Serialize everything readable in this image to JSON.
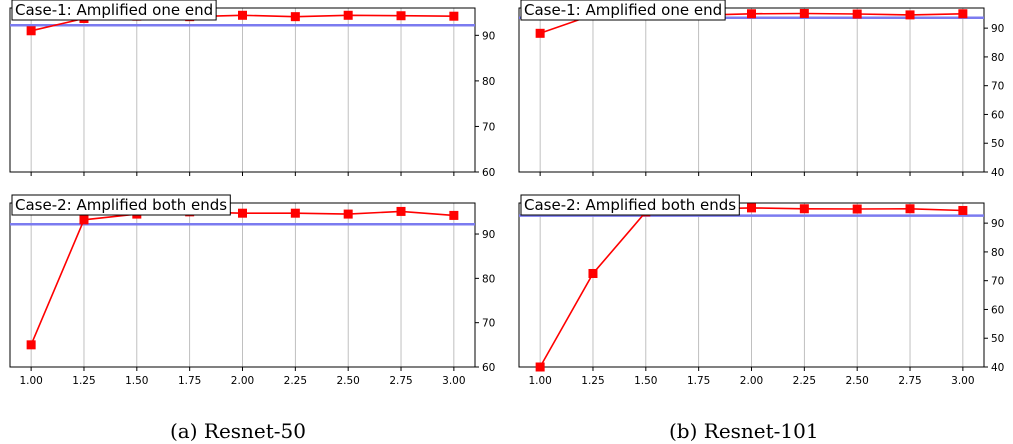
{
  "figure": {
    "captions": [
      "(a) Resnet-50",
      "(b) Resnet-101"
    ]
  },
  "style": {
    "series_color": "#ff0000",
    "baseline_color": "#7b7bf0",
    "grid_color": "#b0b0b0"
  },
  "chart_data": [
    {
      "type": "line",
      "title": "Case-1: Amplified one end",
      "x": [
        1.0,
        1.25,
        1.5,
        1.75,
        2.0,
        2.25,
        2.5,
        2.75,
        3.0
      ],
      "series": [
        {
          "values": [
            91.0,
            93.7,
            94.2,
            94.1,
            94.4,
            94.1,
            94.4,
            94.3,
            94.2
          ]
        }
      ],
      "baseline": 92.2,
      "xlim": [
        0.9,
        3.1
      ],
      "ylim": [
        60,
        96
      ],
      "yticks": [
        60,
        70,
        80,
        90
      ],
      "xticks": [
        1.0,
        1.25,
        1.5,
        1.75,
        2.0,
        2.25,
        2.5,
        2.75,
        3.0
      ],
      "show_xticklabels": false,
      "grid": "x",
      "yaxis_side": "right"
    },
    {
      "type": "line",
      "title": "Case-2: Amplified both ends",
      "x": [
        1.0,
        1.25,
        1.5,
        1.75,
        2.0,
        2.25,
        2.5,
        2.75,
        3.0
      ],
      "series": [
        {
          "values": [
            65.0,
            93.2,
            94.5,
            95.0,
            94.7,
            94.7,
            94.5,
            95.1,
            94.2
          ]
        }
      ],
      "baseline": 92.2,
      "xlim": [
        0.9,
        3.1
      ],
      "ylim": [
        60,
        97
      ],
      "yticks": [
        60,
        70,
        80,
        90
      ],
      "xticks": [
        1.0,
        1.25,
        1.5,
        1.75,
        2.0,
        2.25,
        2.5,
        2.75,
        3.0
      ],
      "xticklabels": [
        "1.00",
        "1.25",
        "1.50",
        "1.75",
        "2.00",
        "2.25",
        "2.50",
        "2.75",
        "3.00"
      ],
      "show_xticklabels": true,
      "grid": "x",
      "yaxis_side": "right"
    },
    {
      "type": "line",
      "title": "Case-1: Amplified one end",
      "x": [
        1.0,
        1.25,
        1.5,
        1.75,
        2.0,
        2.25,
        2.5,
        2.75,
        3.0
      ],
      "series": [
        {
          "values": [
            88.2,
            94.6,
            94.4,
            94.5,
            95.0,
            95.1,
            94.9,
            94.6,
            95.0
          ]
        }
      ],
      "baseline": 93.6,
      "xlim": [
        0.9,
        3.1
      ],
      "ylim": [
        40,
        97
      ],
      "yticks": [
        40,
        50,
        60,
        70,
        80,
        90
      ],
      "xticks": [
        1.0,
        1.25,
        1.5,
        1.75,
        2.0,
        2.25,
        2.5,
        2.75,
        3.0
      ],
      "show_xticklabels": false,
      "grid": "x",
      "yaxis_side": "right"
    },
    {
      "type": "line",
      "title": "Case-2: Amplified both ends",
      "x": [
        1.0,
        1.25,
        1.5,
        1.75,
        2.0,
        2.25,
        2.5,
        2.75,
        3.0
      ],
      "series": [
        {
          "values": [
            40.0,
            72.5,
            93.9,
            94.9,
            95.3,
            95.0,
            94.9,
            95.0,
            94.4
          ]
        }
      ],
      "baseline": 92.6,
      "xlim": [
        0.9,
        3.1
      ],
      "ylim": [
        40,
        97
      ],
      "yticks": [
        40,
        50,
        60,
        70,
        80,
        90
      ],
      "xticks": [
        1.0,
        1.25,
        1.5,
        1.75,
        2.0,
        2.25,
        2.5,
        2.75,
        3.0
      ],
      "xticklabels": [
        "1.00",
        "1.25",
        "1.50",
        "1.75",
        "2.00",
        "2.25",
        "2.50",
        "2.75",
        "3.00"
      ],
      "show_xticklabels": true,
      "grid": "x",
      "yaxis_side": "right"
    }
  ]
}
